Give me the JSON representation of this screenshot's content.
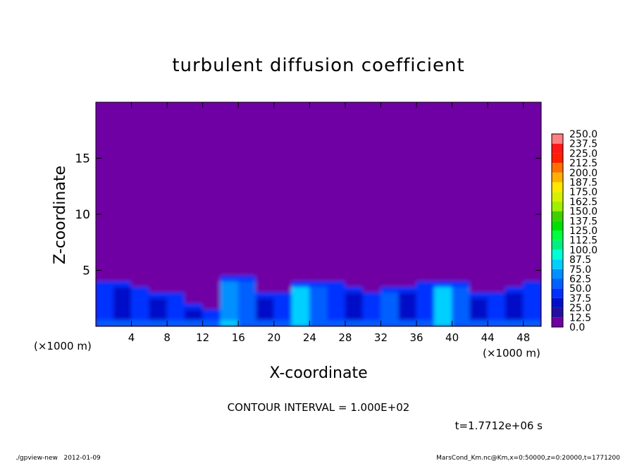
{
  "chart_data": {
    "type": "heatmap",
    "title": "turbulent diffusion coefficient",
    "xlabel": "X-coordinate",
    "ylabel": "Z-coordinate",
    "x_unit_label_left": "(×1000 m)",
    "x_unit_label_right": "(×1000 m)",
    "xlim": [
      0,
      50
    ],
    "ylim": [
      0,
      20
    ],
    "x_ticks": [
      4,
      8,
      12,
      16,
      20,
      24,
      28,
      32,
      36,
      40,
      44,
      48
    ],
    "y_ticks": [
      5,
      10,
      15
    ],
    "grid": false,
    "legend_placement": "right",
    "colorbar": {
      "levels": [
        "0.0",
        "12.5",
        "25.0",
        "37.5",
        "50.0",
        "62.5",
        "75.0",
        "87.5",
        "100.0",
        "112.5",
        "125.0",
        "137.5",
        "150.0",
        "162.5",
        "175.0",
        "187.5",
        "200.0",
        "212.5",
        "225.0",
        "237.5",
        "250.0"
      ],
      "colors": [
        "#6f00a3",
        "#22109e",
        "#0010c8",
        "#0030ff",
        "#0060ff",
        "#0090ff",
        "#00d0ff",
        "#00ffd8",
        "#00f080",
        "#00ff40",
        "#00e000",
        "#40d000",
        "#a0f000",
        "#d8f000",
        "#ffe800",
        "#ffb000",
        "#ff7000",
        "#ff2000",
        "#ff1818",
        "#ff8080"
      ]
    },
    "background_value": 0,
    "grid_x_centers": [
      1,
      3,
      5,
      7,
      9,
      11,
      13,
      15,
      17,
      19,
      21,
      23,
      25,
      27,
      29,
      31,
      33,
      35,
      37,
      39,
      41,
      43,
      45,
      47,
      49
    ],
    "grid_z_centers": [
      4.75,
      4.25,
      3.75,
      3.25,
      2.75,
      2.25,
      1.75,
      1.25,
      0.75,
      0.25
    ],
    "values": [
      [
        0,
        0,
        0,
        0,
        0,
        0,
        0,
        0,
        0,
        0,
        0,
        0,
        0,
        0,
        0,
        0,
        0,
        0,
        0,
        0,
        0,
        0,
        0,
        0,
        0
      ],
      [
        0,
        0,
        0,
        0,
        0,
        0,
        0,
        37.5,
        37.5,
        0,
        0,
        0,
        0,
        0,
        0,
        0,
        0,
        0,
        0,
        0,
        0,
        0,
        0,
        0,
        0
      ],
      [
        37.5,
        37.5,
        0,
        0,
        0,
        0,
        0,
        62.5,
        50,
        0,
        0,
        37.5,
        37.5,
        37.5,
        0,
        0,
        0,
        0,
        37.5,
        37.5,
        37.5,
        0,
        0,
        0,
        37.5
      ],
      [
        37.5,
        25,
        37.5,
        0,
        0,
        0,
        0,
        62.5,
        50,
        0,
        0,
        75,
        50,
        37.5,
        37.5,
        0,
        37.5,
        37.5,
        37.5,
        75,
        50,
        0,
        0,
        37.5,
        37.5
      ],
      [
        37.5,
        25,
        37.5,
        37.5,
        37.5,
        0,
        0,
        62.5,
        50,
        37.5,
        37.5,
        75,
        50,
        37.5,
        25,
        37.5,
        50,
        25,
        37.5,
        75,
        50,
        37.5,
        37.5,
        25,
        37.5
      ],
      [
        37.5,
        25,
        37.5,
        25,
        37.5,
        0,
        0,
        62.5,
        50,
        25,
        37.5,
        75,
        50,
        37.5,
        25,
        37.5,
        50,
        25,
        37.5,
        75,
        50,
        25,
        37.5,
        25,
        37.5
      ],
      [
        37.5,
        25,
        37.5,
        25,
        37.5,
        37.5,
        0,
        62.5,
        50,
        25,
        37.5,
        75,
        50,
        37.5,
        25,
        37.5,
        50,
        25,
        37.5,
        75,
        50,
        25,
        37.5,
        25,
        37.5
      ],
      [
        37.5,
        25,
        37.5,
        25,
        37.5,
        25,
        37.5,
        62.5,
        50,
        25,
        37.5,
        75,
        50,
        37.5,
        25,
        37.5,
        50,
        25,
        37.5,
        75,
        50,
        25,
        37.5,
        25,
        37.5
      ],
      [
        37.5,
        25,
        37.5,
        25,
        37.5,
        25,
        37.5,
        62.5,
        50,
        25,
        37.5,
        75,
        50,
        37.5,
        25,
        37.5,
        50,
        25,
        37.5,
        75,
        50,
        25,
        37.5,
        25,
        37.5
      ],
      [
        50,
        50,
        50,
        50,
        50,
        50,
        50,
        75,
        50,
        50,
        50,
        75,
        50,
        50,
        50,
        50,
        50,
        50,
        50,
        75,
        50,
        50,
        50,
        50,
        50
      ]
    ]
  },
  "contour_interval": "CONTOUR INTERVAL = 1.000E+02",
  "time_label": "t=1.7712e+06 s",
  "footer": {
    "left": "./gpview-new   2012-01-09",
    "right": "MarsCond_Km.nc@Km,x=0:50000,z=0:20000,t=1771200"
  }
}
